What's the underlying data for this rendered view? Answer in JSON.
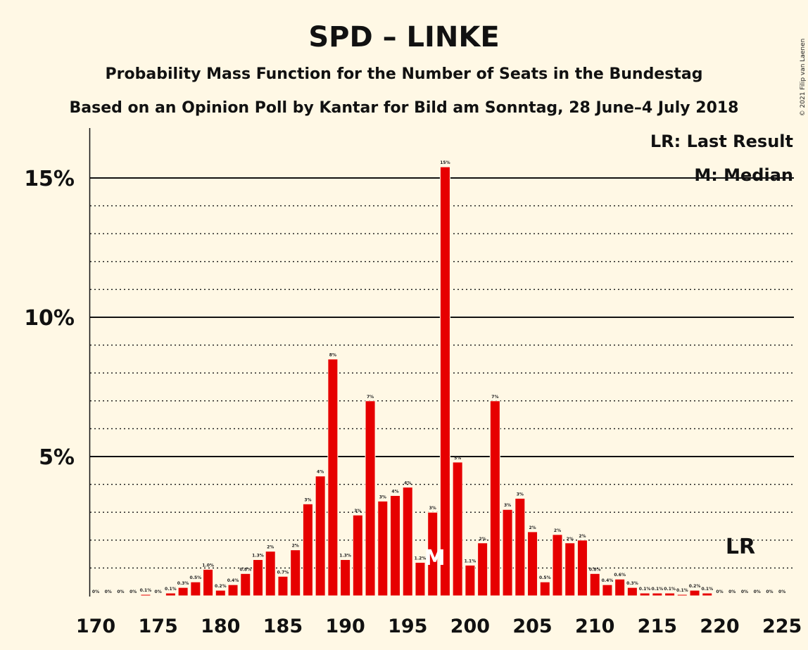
{
  "chart_data": {
    "type": "bar",
    "title": "SPD – LINKE",
    "subtitle": "Probability Mass Function for the Number of Seats in the Bundestag",
    "subtitle2": "Based on an Opinion Poll by Kantar for Bild am Sonntag, 28 June–4 July 2018",
    "copyright": "© 2021 Filip van Laenen",
    "legend": {
      "lr": "LR: Last Result",
      "m": "M: Median",
      "placement": "top-right"
    },
    "annotations": {
      "lr_label": "LR",
      "lr_seat": 222,
      "m_label": "M",
      "median_seat": 197
    },
    "bar_color": "#e60000",
    "ylim": [
      0,
      16.5
    ],
    "xlim": [
      170,
      225
    ],
    "y_ticks": [
      {
        "value": 5,
        "label": "5%"
      },
      {
        "value": 10,
        "label": "10%"
      },
      {
        "value": 15,
        "label": "15%"
      }
    ],
    "x_ticks": [
      170,
      175,
      180,
      185,
      190,
      195,
      200,
      205,
      210,
      215,
      220,
      225
    ],
    "grid": true,
    "seats": [
      170,
      171,
      172,
      173,
      174,
      175,
      176,
      177,
      178,
      179,
      180,
      181,
      182,
      183,
      184,
      185,
      186,
      187,
      188,
      189,
      190,
      191,
      192,
      193,
      194,
      195,
      196,
      197,
      198,
      199,
      200,
      201,
      202,
      203,
      204,
      205,
      206,
      207,
      208,
      209,
      210,
      211,
      212,
      213,
      214,
      215,
      216,
      217,
      218,
      219,
      220,
      221,
      222,
      223,
      224,
      225
    ],
    "values": [
      0,
      0,
      0,
      0,
      0.05,
      0,
      0.1,
      0.3,
      0.5,
      0.95,
      0.2,
      0.4,
      0.8,
      1.3,
      1.6,
      0.7,
      1.65,
      3.3,
      4.3,
      8.5,
      1.3,
      2.9,
      7.0,
      3.4,
      3.6,
      3.9,
      1.2,
      3.0,
      15.4,
      4.8,
      1.1,
      1.9,
      7.0,
      3.1,
      3.5,
      2.3,
      0.5,
      2.2,
      1.9,
      2.0,
      0.8,
      0.4,
      0.6,
      0.3,
      0.1,
      0.1,
      0.1,
      0.05,
      0.2,
      0.1,
      0,
      0,
      0,
      0,
      0,
      0
    ],
    "labels": [
      "0%",
      "0%",
      "0%",
      "0%",
      "0.1%",
      "0%",
      "0.1%",
      "0.3%",
      "0.5%",
      "1.0%",
      "0.2%",
      "0.4%",
      "0.8%",
      "1.3%",
      "2%",
      "0.7%",
      "2%",
      "3%",
      "4%",
      "8%",
      "1.3%",
      "3%",
      "7%",
      "3%",
      "4%",
      "4%",
      "1.2%",
      "3%",
      "15%",
      "5%",
      "1.1%",
      "2%",
      "7%",
      "3%",
      "3%",
      "2%",
      "0.5%",
      "2%",
      "2%",
      "2%",
      "0.8%",
      "0.4%",
      "0.6%",
      "0.3%",
      "0.1%",
      "0.1%",
      "0.1%",
      "0.1%",
      "0.2%",
      "0.1%",
      "0%",
      "0%",
      "0%",
      "0%",
      "0%",
      "0%"
    ]
  }
}
